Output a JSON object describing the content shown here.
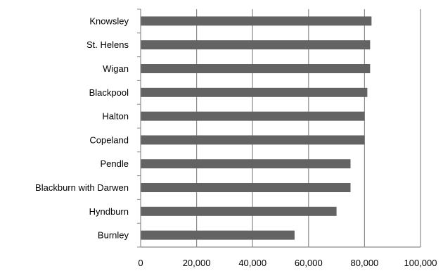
{
  "chart_data": {
    "type": "bar",
    "orientation": "horizontal",
    "title": "",
    "xlabel": "",
    "ylabel": "",
    "categories": [
      "Knowsley",
      "St. Helens",
      "Wigan",
      "Blackpool",
      "Halton",
      "Copeland",
      "Pendle",
      "Blackburn with Darwen",
      "Hyndburn",
      "Burnley"
    ],
    "values": [
      82500,
      82000,
      82000,
      81000,
      80000,
      80000,
      75000,
      75000,
      70000,
      55000
    ],
    "xlim": [
      0,
      100000
    ],
    "x_ticks": [
      0,
      20000,
      40000,
      60000,
      80000,
      100000
    ],
    "x_tick_labels": [
      "0",
      "20,000",
      "40,000",
      "60,000",
      "80,000",
      "100,000"
    ],
    "grid": "vertical",
    "legend": "none",
    "colors": {
      "bar": "#636363",
      "grid": "#8c8c8c",
      "axis": "#8c8c8c"
    }
  }
}
